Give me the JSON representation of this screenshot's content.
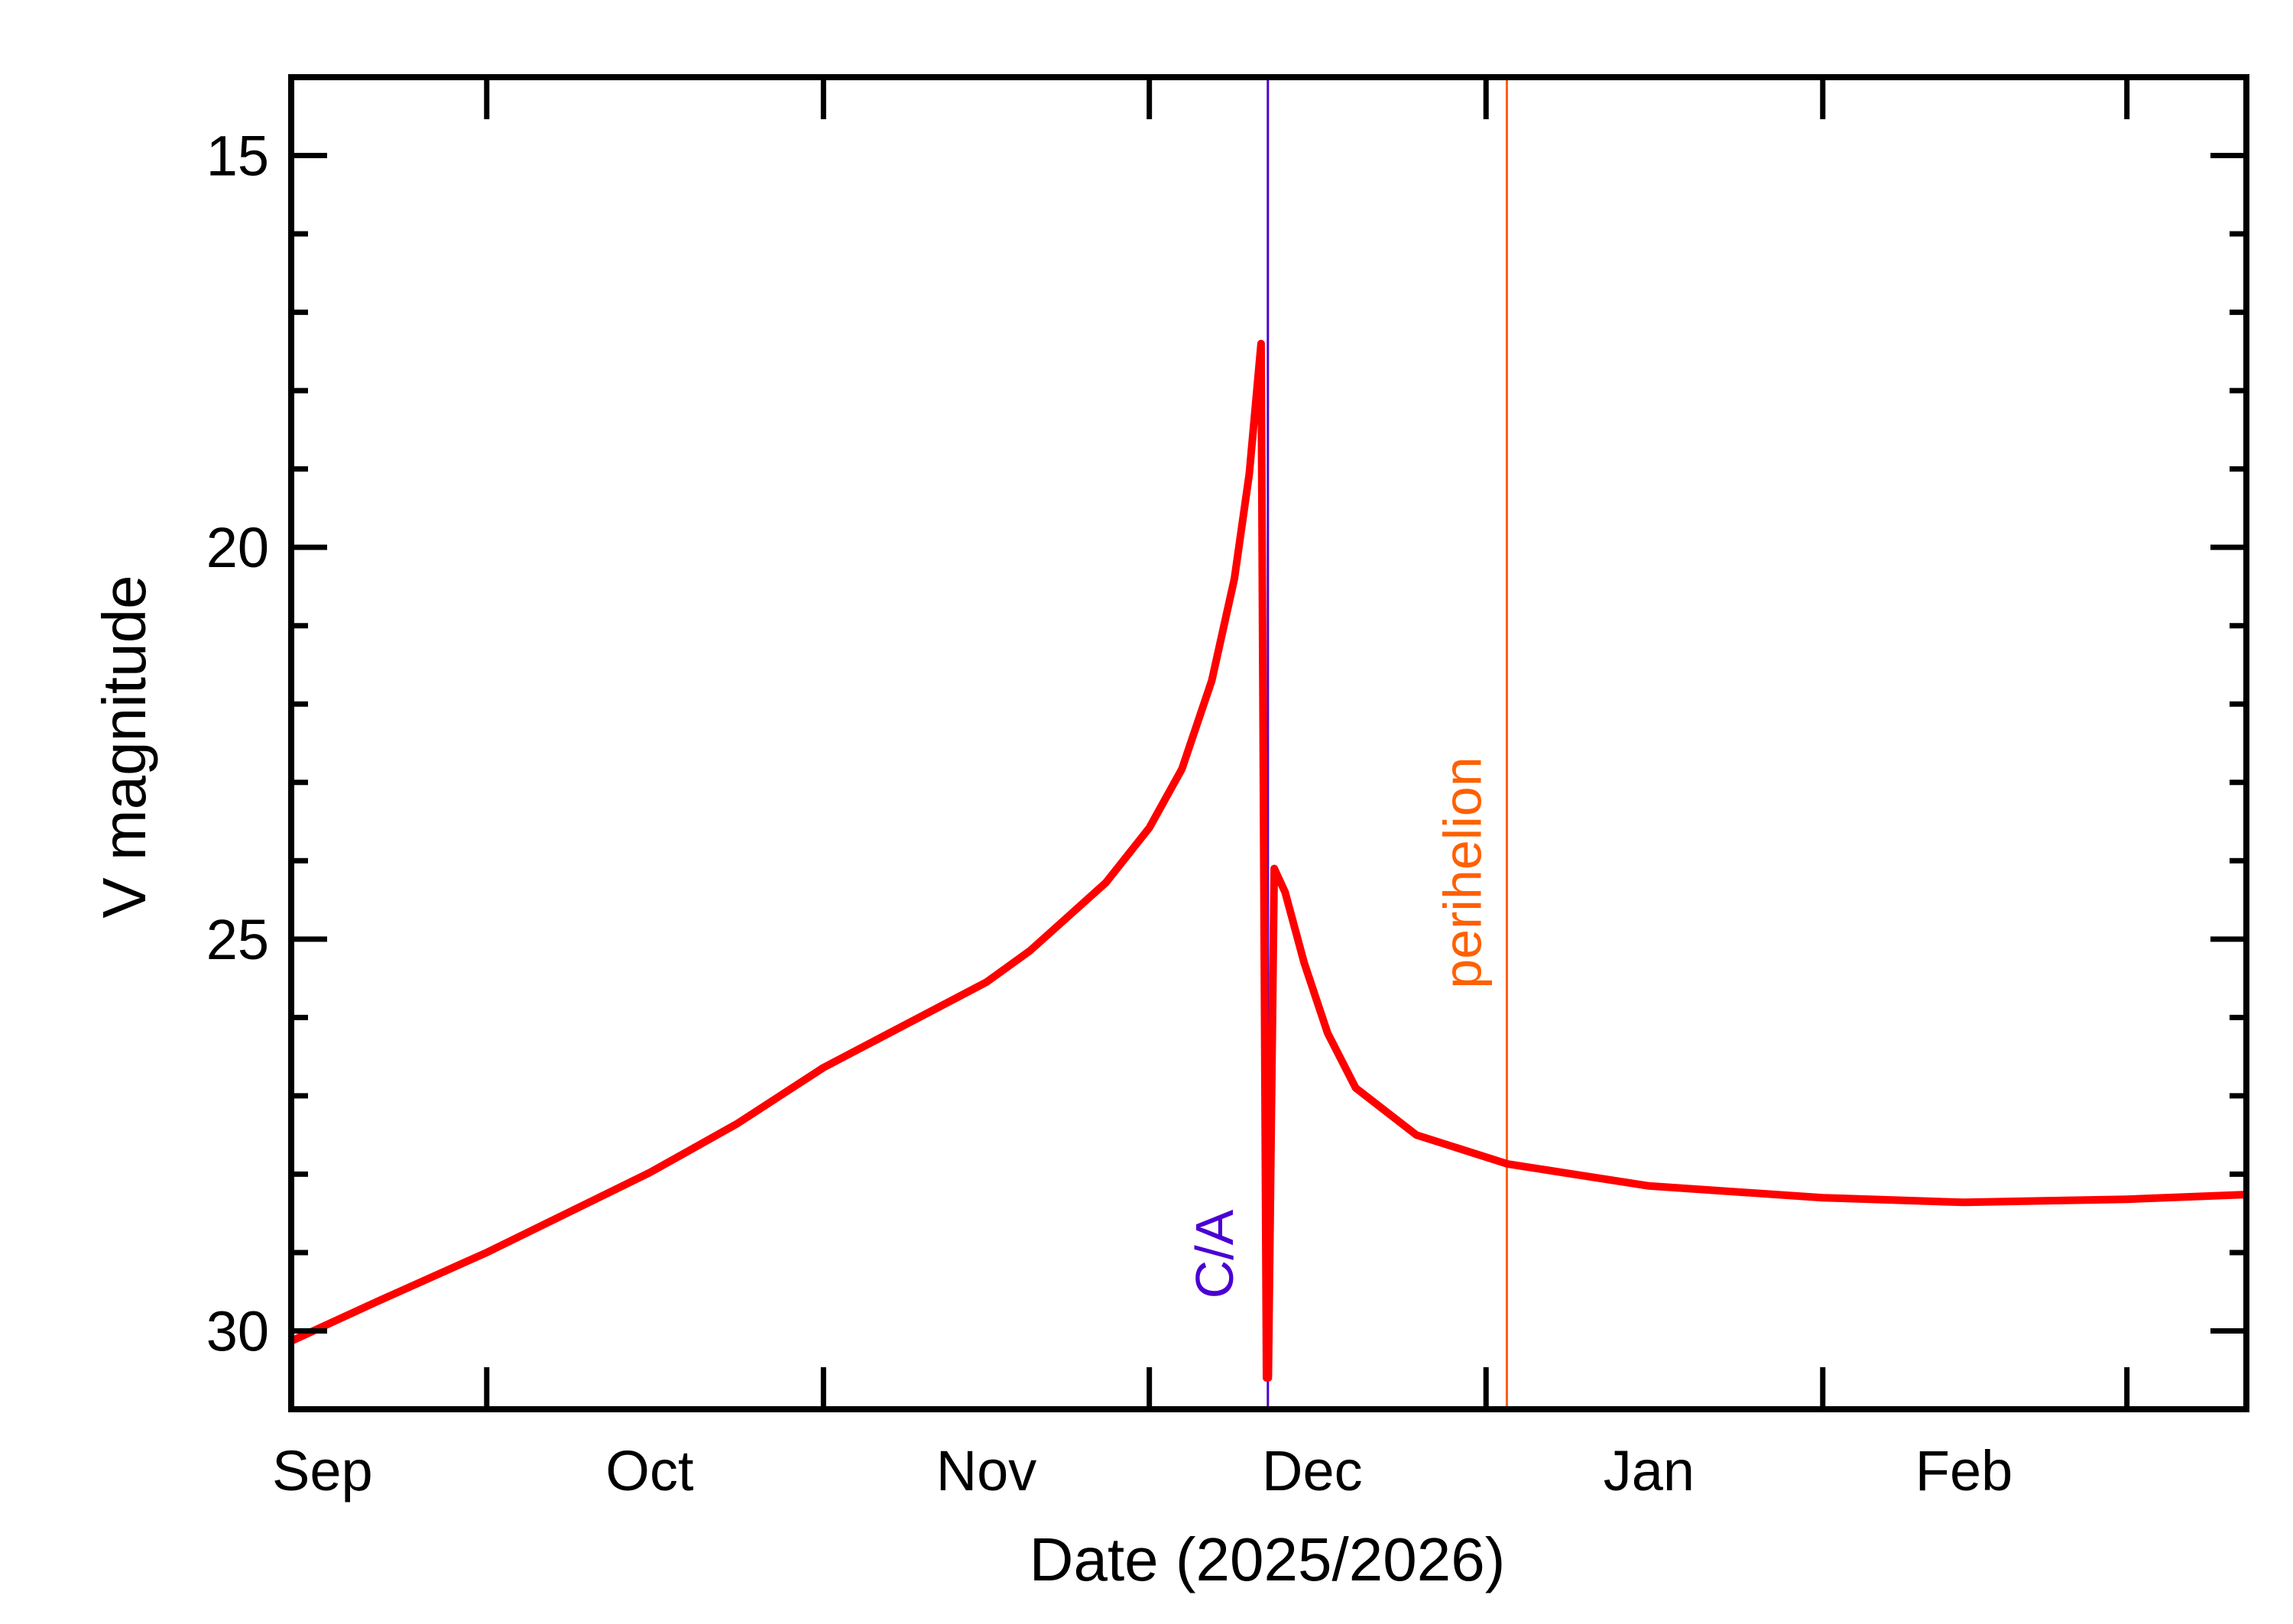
{
  "chart_data": {
    "type": "line",
    "title": "",
    "xlabel": "Date (2025/2026)",
    "ylabel": "V magnitude",
    "x_type": "date",
    "xlim": [
      "2025-09-13",
      "2026-03-12"
    ],
    "ylim": [
      14,
      31
    ],
    "y_inverted": true,
    "grid": false,
    "x_ticks": [
      {
        "date": "2025-10-01"
      },
      {
        "date": "2025-11-01"
      },
      {
        "date": "2025-12-01"
      },
      {
        "date": "2026-01-01"
      },
      {
        "date": "2026-02-01"
      },
      {
        "date": "2026-03-01"
      }
    ],
    "x_tick_labels": [
      {
        "label": "Sep",
        "date": "2025-09-15"
      },
      {
        "label": "Oct",
        "date": "2025-10-16"
      },
      {
        "label": "Nov",
        "date": "2025-11-16"
      },
      {
        "label": "Dec",
        "date": "2025-12-16"
      },
      {
        "label": "Jan",
        "date": "2026-01-16"
      },
      {
        "label": "Feb",
        "date": "2026-02-14"
      }
    ],
    "y_major_ticks": [
      15,
      20,
      25,
      30
    ],
    "y_tick_labels": [
      "15",
      "20",
      "25",
      "30"
    ],
    "y_minor_step": 1,
    "series": [
      {
        "color": "#ff0000",
        "points": [
          [
            "2025-09-13T00:00",
            30.13
          ],
          [
            "2025-09-21T00:00",
            29.62
          ],
          [
            "2025-10-01T00:00",
            29.0
          ],
          [
            "2025-10-16T00:00",
            27.98
          ],
          [
            "2025-10-24T00:00",
            27.36
          ],
          [
            "2025-11-01T00:00",
            26.64
          ],
          [
            "2025-11-16T00:00",
            25.55
          ],
          [
            "2025-11-20T00:00",
            25.15
          ],
          [
            "2025-11-27T00:00",
            24.28
          ],
          [
            "2025-12-01T00:00",
            23.58
          ],
          [
            "2025-12-04T00:00",
            22.83
          ],
          [
            "2025-12-06T18:00",
            21.7
          ],
          [
            "2025-12-08T20:00",
            20.4
          ],
          [
            "2025-12-10T05:00",
            19.06
          ],
          [
            "2025-12-11T07:00",
            17.4
          ],
          [
            "2025-12-11T19:00",
            30.6
          ],
          [
            "2025-12-11T23:00",
            30.6
          ],
          [
            "2025-12-12T12:00",
            24.1
          ],
          [
            "2025-12-13T12:00",
            24.4
          ],
          [
            "2025-12-15T06:00",
            25.3
          ],
          [
            "2025-12-17T10:00",
            26.2
          ],
          [
            "2025-12-20T00:00",
            26.9
          ],
          [
            "2025-12-25T14:00",
            27.5
          ],
          [
            "2026-01-03T00:00",
            27.87
          ],
          [
            "2026-01-16T00:00",
            28.15
          ],
          [
            "2026-02-01T00:00",
            28.3
          ],
          [
            "2026-02-14T00:00",
            28.36
          ],
          [
            "2026-03-01T00:00",
            28.32
          ],
          [
            "2026-03-12T00:00",
            28.26
          ]
        ]
      }
    ],
    "annotations": [
      {
        "label": "C/A",
        "date": "2025-12-11T22:00",
        "color": "#4b00d2"
      },
      {
        "label": "perihelion",
        "date": "2026-01-02T22:00",
        "color": "#ff6000"
      }
    ],
    "axis_color": "#000000"
  }
}
